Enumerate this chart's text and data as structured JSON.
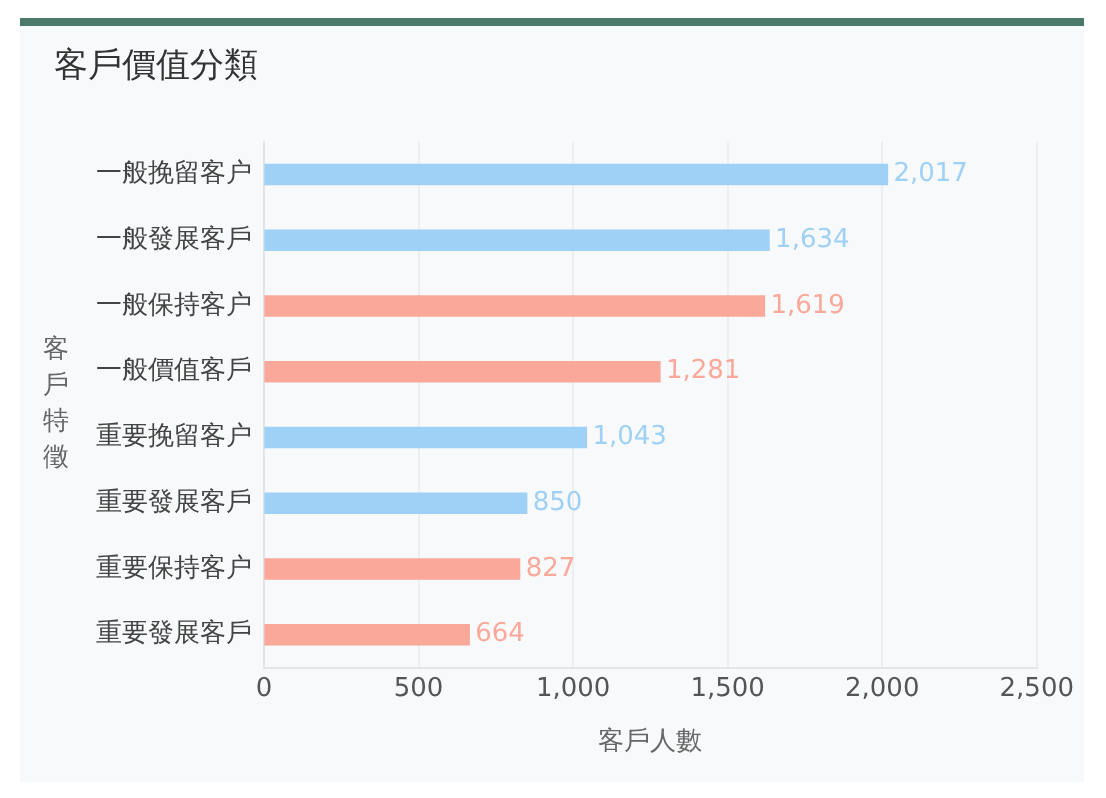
{
  "chart_data": {
    "type": "bar",
    "orientation": "horizontal",
    "title": "客戶價值分類",
    "xlabel": "客戶人數",
    "ylabel": "客戶特徵",
    "categories": [
      "一般挽留客户",
      "一般發展客戶",
      "一般保持客户",
      "一般價值客戶",
      "重要挽留客户",
      "重要發展客戶",
      "重要保持客户",
      "重要發展客戶"
    ],
    "values": [
      2017,
      1634,
      1619,
      1281,
      1043,
      850,
      827,
      664
    ],
    "colors": [
      "#9fd0f5",
      "#9fd0f5",
      "#f9a899",
      "#f9a899",
      "#9fd0f5",
      "#9fd0f5",
      "#f9a899",
      "#f9a899"
    ],
    "value_labels": [
      "2,017",
      "1,634",
      "1,619",
      "1,281",
      "1,043",
      "850",
      "827",
      "664"
    ],
    "xlim": [
      0,
      2500
    ],
    "xticks": [
      0,
      500,
      {
        "value": 1000,
        "label": "1,000"
      },
      {
        "value": 1500,
        "label": "1,500"
      },
      {
        "value": 2000,
        "label": "2,000"
      },
      {
        "value": 2500,
        "label": "2,500"
      }
    ],
    "grid": "x"
  }
}
